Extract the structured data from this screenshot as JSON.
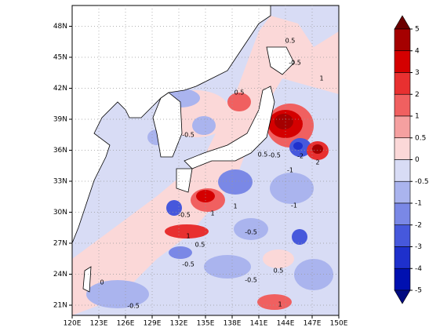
{
  "map": {
    "lon_ticks": [
      "120E",
      "123E",
      "126E",
      "129E",
      "132E",
      "135E",
      "138E",
      "141E",
      "144E",
      "147E",
      "150E"
    ],
    "lat_ticks": [
      "21N",
      "24N",
      "27N",
      "30N",
      "33N",
      "36N",
      "39N",
      "42N",
      "45N",
      "48N"
    ]
  },
  "colorbar": {
    "levels": [
      5,
      4,
      3,
      2,
      1,
      0.5,
      0,
      -0.5,
      -1,
      -2,
      -3,
      -4,
      -5
    ],
    "colors": [
      "#6b0000",
      "#a50000",
      "#d40000",
      "#e83030",
      "#f06060",
      "#f5a0a0",
      "#fbd8d8",
      "#d8dcf5",
      "#aab4ee",
      "#7a88e6",
      "#4658dc",
      "#1e30cc",
      "#0010b0",
      "#000a80"
    ]
  },
  "contour_labels": [
    -0.5,
    0.5,
    1,
    0.5,
    -0.5,
    0.5,
    -0.5,
    -1,
    -2,
    2,
    -1,
    -0.5,
    1,
    -0.5,
    1,
    0.5,
    -0.5,
    -0.5,
    0.5,
    -0.5,
    1,
    0,
    1
  ]
}
